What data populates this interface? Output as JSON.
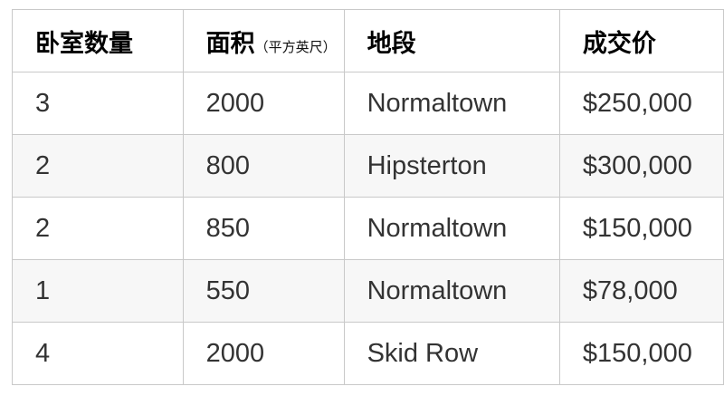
{
  "table": {
    "columns": [
      {
        "label": "卧室数量",
        "sublabel": ""
      },
      {
        "label": "面积",
        "sublabel": "（平方英尺）"
      },
      {
        "label": "地段",
        "sublabel": ""
      },
      {
        "label": "成交价",
        "sublabel": ""
      }
    ],
    "rows": [
      [
        "3",
        "2000",
        "Normaltown",
        "$250,000"
      ],
      [
        "2",
        "800",
        "Hipsterton",
        "$300,000"
      ],
      [
        "2",
        "850",
        "Normaltown",
        "$150,000"
      ],
      [
        "1",
        "550",
        "Normaltown",
        "$78,000"
      ],
      [
        "4",
        "2000",
        "Skid Row",
        "$150,000"
      ]
    ],
    "colors": {
      "border": "#c9c9c9",
      "zebra_row": "#f7f7f7",
      "header_text": "#000000",
      "cell_text": "#333333",
      "background": "#ffffff"
    }
  },
  "chart_data": {
    "type": "table",
    "title": "",
    "columns": [
      "卧室数量",
      "面积（平方英尺）",
      "地段",
      "成交价"
    ],
    "rows": [
      [
        3,
        2000,
        "Normaltown",
        "$250,000"
      ],
      [
        2,
        800,
        "Hipsterton",
        "$300,000"
      ],
      [
        2,
        850,
        "Normaltown",
        "$150,000"
      ],
      [
        1,
        550,
        "Normaltown",
        "$78,000"
      ],
      [
        4,
        2000,
        "Skid Row",
        "$150,000"
      ]
    ]
  }
}
